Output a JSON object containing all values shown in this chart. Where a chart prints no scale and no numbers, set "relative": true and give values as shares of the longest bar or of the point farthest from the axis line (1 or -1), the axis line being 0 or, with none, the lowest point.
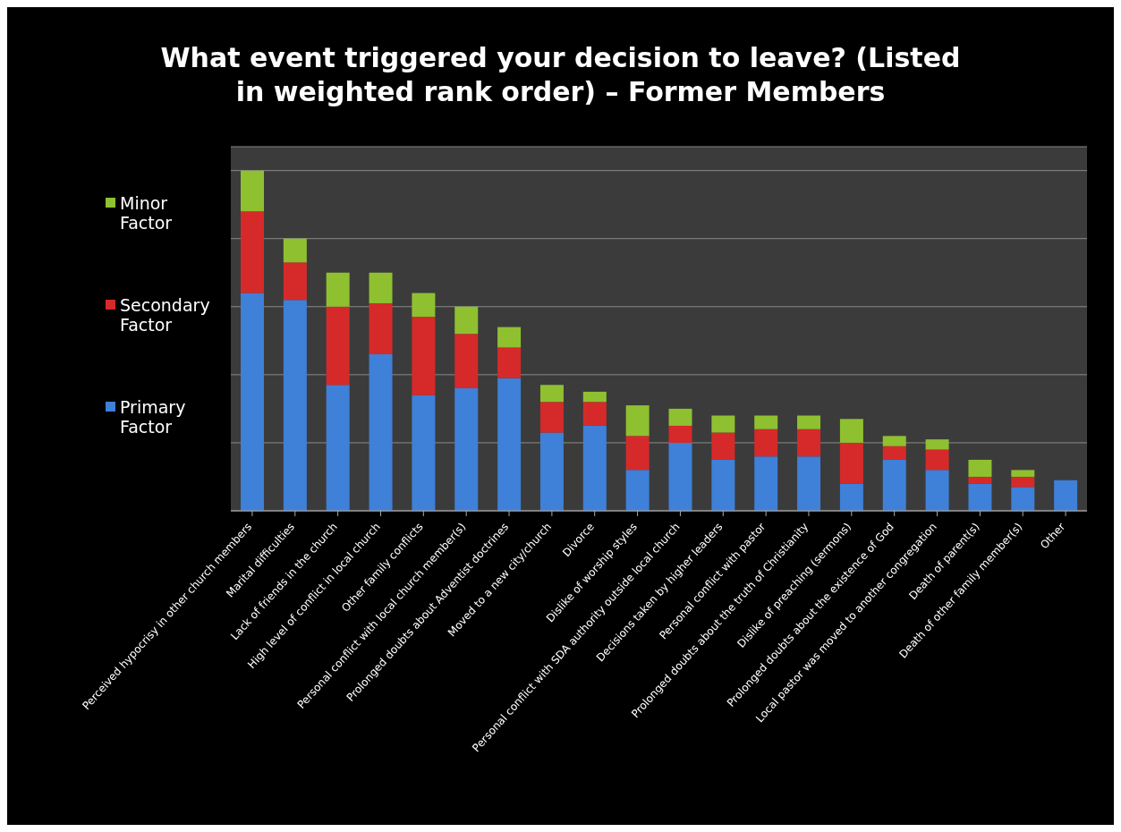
{
  "chart_data": {
    "type": "bar",
    "title": "What event triggered your decision to leave? (Listed in weighted rank order) – Former Members",
    "categories": [
      "Perceived hypocrisy in other church members",
      "Marital difficulties",
      "Lack of friends in the church",
      "High level of conflict in local church",
      "Other family conflicts",
      "Personal conflict with local church member(s)",
      "Prolonged doubts about Adventist doctrines",
      "Moved to a new city/church",
      "Divorce",
      "Dislike of worship styles",
      "Personal conflict with SDA authority outside local church",
      "Decisions taken by higher leaders",
      "Personal conflict with pastor",
      "Prolonged doubts about the truth of Christianity",
      "Dislike of preaching (sermons)",
      "Prolonged doubts about the existence of God",
      "Local pastor was moved to another congregation",
      "Death of parent(s)",
      "Death of other family member(s)",
      "Other"
    ],
    "relative": true,
    "stacked": true,
    "grid": "y",
    "legend": "left",
    "series": [
      {
        "name": "Primary Factor",
        "color": "#3f80d8",
        "values": [
          0.64,
          0.62,
          0.37,
          0.46,
          0.34,
          0.36,
          0.39,
          0.23,
          0.25,
          0.12,
          0.2,
          0.15,
          0.16,
          0.16,
          0.08,
          0.15,
          0.12,
          0.08,
          0.07,
          0.09
        ]
      },
      {
        "name": "Secondary Factor",
        "color": "#d62a2a",
        "values": [
          0.24,
          0.11,
          0.23,
          0.15,
          0.23,
          0.16,
          0.09,
          0.09,
          0.07,
          0.1,
          0.05,
          0.08,
          0.08,
          0.08,
          0.12,
          0.04,
          0.06,
          0.02,
          0.03,
          0
        ]
      },
      {
        "name": "Minor Factor",
        "color": "#8fc030",
        "values": [
          0.12,
          0.07,
          0.1,
          0.09,
          0.07,
          0.08,
          0.06,
          0.05,
          0.03,
          0.09,
          0.05,
          0.05,
          0.04,
          0.04,
          0.07,
          0.03,
          0.03,
          0.05,
          0.02,
          0
        ]
      }
    ]
  }
}
